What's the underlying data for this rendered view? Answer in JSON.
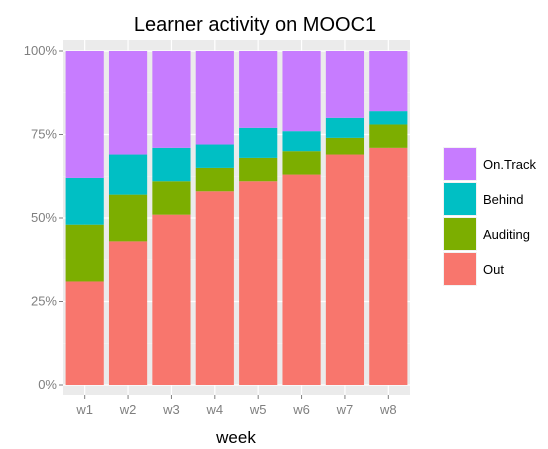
{
  "chart_data": {
    "type": "bar",
    "stacked": true,
    "normalized": true,
    "title": "Learner activity on MOOC1",
    "xlabel": "week",
    "ylabel": "",
    "ylim": [
      0,
      1
    ],
    "yticks": [
      "0%",
      "25%",
      "50%",
      "75%",
      "100%"
    ],
    "grid": true,
    "legend_position": "right",
    "categories": [
      "w1",
      "w2",
      "w3",
      "w4",
      "w5",
      "w6",
      "w7",
      "w8"
    ],
    "series": [
      {
        "name": "Out",
        "color": "#F8766D",
        "values": [
          0.31,
          0.43,
          0.51,
          0.58,
          0.61,
          0.63,
          0.69,
          0.71
        ]
      },
      {
        "name": "Auditing",
        "color": "#7CAE00",
        "values": [
          0.17,
          0.14,
          0.1,
          0.07,
          0.07,
          0.07,
          0.05,
          0.07
        ]
      },
      {
        "name": "Behind",
        "color": "#00BFC4",
        "values": [
          0.14,
          0.12,
          0.1,
          0.07,
          0.09,
          0.06,
          0.06,
          0.04
        ]
      },
      {
        "name": "On.Track",
        "color": "#C77CFF",
        "values": [
          0.38,
          0.31,
          0.29,
          0.28,
          0.23,
          0.24,
          0.2,
          0.18
        ]
      }
    ],
    "legend_order": [
      "On.Track",
      "Behind",
      "Auditing",
      "Out"
    ]
  }
}
